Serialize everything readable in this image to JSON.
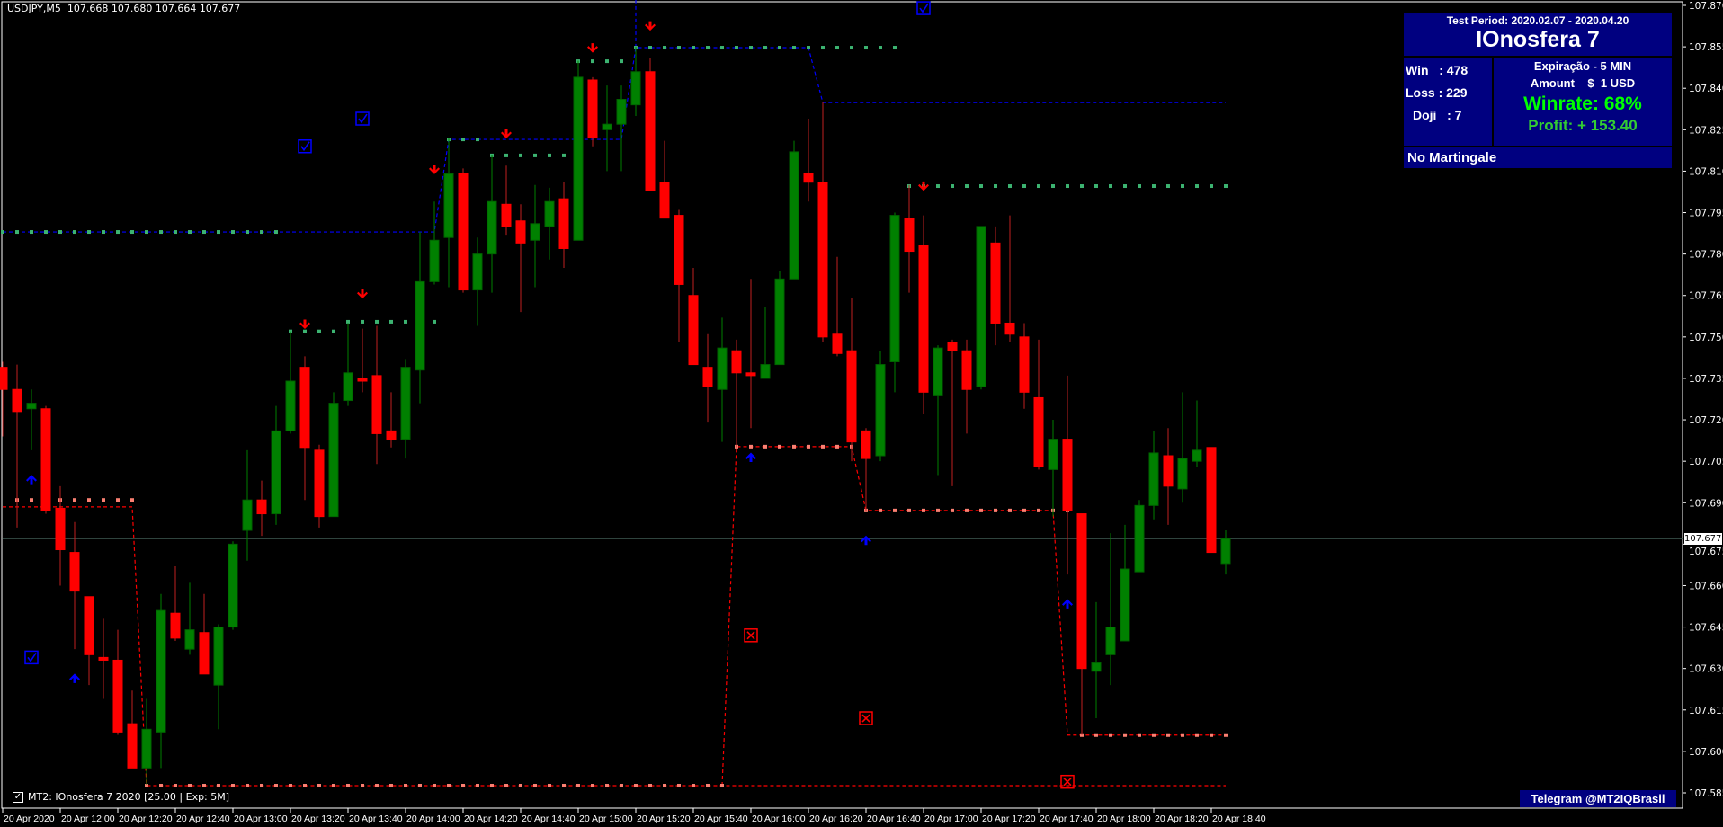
{
  "header": {
    "symbol": "USDJPY,M5",
    "ohlc_text": "107.668 107.680 107.664 107.677"
  },
  "panel": {
    "test_period": "Test Period: 2020.02.07 - 2020.04.20",
    "robot_name": "IOnosfera 7",
    "win": "Win   : 478",
    "loss": "Loss : 229",
    "doji": "Doji   : 7",
    "expiration": "Expiração - 5 MIN",
    "amount": "Amount    $  1 USD",
    "winrate": "Winrate: 68%",
    "profit": "Profit: + 153.40",
    "martingale": "No Martingale"
  },
  "legend": {
    "checked": true,
    "check_glyph": "✓",
    "label": "MT2: IOnosfera 7 2020 [25.00 | Exp: 5M]"
  },
  "telegram": "Telegram @MT2IQBrasil",
  "current_price": "107.677",
  "colors": {
    "bull": "#008000",
    "bear": "#ff0000",
    "bear_wick": "#c02020",
    "panel": "#000080",
    "price_line": "#3f5a52",
    "resistance_dots": "#3cb371",
    "support_dots": "#fa8072",
    "blue_line": "#0000ff",
    "red_line": "#ff0000",
    "up_arrow": "#0000ff",
    "down_arrow": "#ff0000"
  },
  "chart_data": {
    "type": "candlestick",
    "symbol": "USDJPY",
    "timeframe": "M5",
    "ylim": [
      107.585,
      107.87
    ],
    "y_ticks": [
      "107.870",
      "107.855",
      "107.840",
      "107.825",
      "107.810",
      "107.795",
      "107.780",
      "107.765",
      "107.750",
      "107.735",
      "107.720",
      "107.705",
      "107.690",
      "107.675",
      "107.660",
      "107.645",
      "107.630",
      "107.615",
      "107.600",
      "107.585"
    ],
    "x_tick_times": [
      "11:40",
      "12:00",
      "12:20",
      "12:40",
      "13:00",
      "13:20",
      "13:40",
      "14:00",
      "14:20",
      "14:40",
      "15:00",
      "15:20",
      "15:40",
      "16:00",
      "16:20",
      "16:40",
      "17:00",
      "17:20",
      "17:40",
      "18:00",
      "18:20",
      "18:40"
    ],
    "x_tick_labels": [
      "20 Apr 2020",
      "20 Apr 12:00",
      "20 Apr 12:20",
      "20 Apr 12:40",
      "20 Apr 13:00",
      "20 Apr 13:20",
      "20 Apr 13:40",
      "20 Apr 14:00",
      "20 Apr 14:20",
      "20 Apr 14:40",
      "20 Apr 15:00",
      "20 Apr 15:20",
      "20 Apr 15:40",
      "20 Apr 16:00",
      "20 Apr 16:20",
      "20 Apr 16:40",
      "20 Apr 17:00",
      "20 Apr 17:20",
      "20 Apr 17:40",
      "20 Apr 18:00",
      "20 Apr 18:20",
      "20 Apr 18:40"
    ],
    "candle_fields": [
      "time",
      "open",
      "high",
      "low",
      "close"
    ],
    "candles": [
      [
        "11:40",
        107.739,
        107.741,
        107.714,
        107.731
      ],
      [
        "11:45",
        107.731,
        107.74,
        107.681,
        107.723
      ],
      [
        "11:50",
        107.724,
        107.731,
        107.709,
        107.726
      ],
      [
        "11:55",
        107.724,
        107.725,
        107.686,
        107.687
      ],
      [
        "12:00",
        107.688,
        107.696,
        107.66,
        107.673
      ],
      [
        "12:05",
        107.672,
        107.683,
        107.637,
        107.658
      ],
      [
        "12:10",
        107.656,
        107.656,
        107.624,
        107.635
      ],
      [
        "12:15",
        107.634,
        107.648,
        107.619,
        107.633
      ],
      [
        "12:20",
        107.633,
        107.644,
        107.606,
        107.607
      ],
      [
        "12:25",
        107.61,
        107.622,
        107.594,
        107.594
      ],
      [
        "12:30",
        107.594,
        107.619,
        107.588,
        107.608
      ],
      [
        "12:35",
        107.607,
        107.657,
        107.594,
        107.651
      ],
      [
        "12:40",
        107.65,
        107.667,
        107.64,
        107.641
      ],
      [
        "12:45",
        107.637,
        107.661,
        107.635,
        107.644
      ],
      [
        "12:50",
        107.643,
        107.657,
        107.628,
        107.628
      ],
      [
        "12:55",
        107.624,
        107.646,
        107.608,
        107.645
      ],
      [
        "13:00",
        107.645,
        107.676,
        107.644,
        107.675
      ],
      [
        "13:05",
        107.68,
        107.709,
        107.669,
        107.691
      ],
      [
        "13:10",
        107.691,
        107.698,
        107.678,
        107.686
      ],
      [
        "13:15",
        107.686,
        107.725,
        107.682,
        107.716
      ],
      [
        "13:20",
        107.716,
        107.752,
        107.715,
        107.734
      ],
      [
        "13:25",
        107.739,
        107.743,
        107.691,
        107.71
      ],
      [
        "13:30",
        107.709,
        107.711,
        107.681,
        107.685
      ],
      [
        "13:35",
        107.685,
        107.73,
        107.685,
        107.726
      ],
      [
        "13:40",
        107.727,
        107.755,
        107.725,
        107.737
      ],
      [
        "13:45",
        107.735,
        107.753,
        107.73,
        107.734
      ],
      [
        "13:50",
        107.736,
        107.754,
        107.704,
        107.715
      ],
      [
        "13:55",
        107.716,
        107.73,
        107.71,
        107.713
      ],
      [
        "14:00",
        107.713,
        107.742,
        107.706,
        107.739
      ],
      [
        "14:05",
        107.738,
        107.788,
        107.726,
        107.77
      ],
      [
        "14:10",
        107.77,
        107.799,
        107.769,
        107.785
      ],
      [
        "14:15",
        107.786,
        107.822,
        107.768,
        107.809
      ],
      [
        "14:20",
        107.809,
        107.811,
        107.766,
        107.767
      ],
      [
        "14:25",
        107.767,
        107.786,
        107.754,
        107.78
      ],
      [
        "14:30",
        107.78,
        107.816,
        107.766,
        107.799
      ],
      [
        "14:35",
        107.798,
        107.812,
        107.787,
        107.79
      ],
      [
        "14:40",
        107.792,
        107.798,
        107.759,
        107.784
      ],
      [
        "14:45",
        107.785,
        107.805,
        107.768,
        107.791
      ],
      [
        "14:50",
        107.79,
        107.804,
        107.778,
        107.799
      ],
      [
        "14:55",
        107.8,
        107.806,
        107.775,
        107.782
      ],
      [
        "15:00",
        107.785,
        107.85,
        107.785,
        107.844
      ],
      [
        "15:05",
        107.843,
        107.844,
        107.819,
        107.822
      ],
      [
        "15:10",
        107.825,
        107.841,
        107.81,
        107.827
      ],
      [
        "15:15",
        107.827,
        107.841,
        107.81,
        107.836
      ],
      [
        "15:20",
        107.834,
        107.855,
        107.83,
        107.846
      ],
      [
        "15:25",
        107.846,
        107.851,
        107.803,
        107.803
      ],
      [
        "15:30",
        107.806,
        107.821,
        107.793,
        107.793
      ],
      [
        "15:35",
        107.794,
        107.796,
        107.748,
        107.769
      ],
      [
        "15:40",
        107.765,
        107.775,
        107.74,
        107.74
      ],
      [
        "15:45",
        107.739,
        107.751,
        107.719,
        107.732
      ],
      [
        "15:50",
        107.731,
        107.757,
        107.712,
        107.746
      ],
      [
        "15:55",
        107.745,
        107.749,
        107.71,
        107.737
      ],
      [
        "16:00",
        107.737,
        107.771,
        107.717,
        107.736
      ],
      [
        "16:05",
        107.735,
        107.761,
        107.735,
        107.74
      ],
      [
        "16:10",
        107.74,
        107.774,
        107.74,
        107.771
      ],
      [
        "16:15",
        107.771,
        107.821,
        107.771,
        107.817
      ],
      [
        "16:20",
        107.809,
        107.829,
        107.799,
        107.806
      ],
      [
        "16:25",
        107.806,
        107.835,
        107.748,
        107.75
      ],
      [
        "16:30",
        107.751,
        107.779,
        107.743,
        107.744
      ],
      [
        "16:35",
        107.745,
        107.764,
        107.705,
        107.712
      ],
      [
        "16:40",
        107.716,
        107.717,
        107.687,
        107.706
      ],
      [
        "16:45",
        107.707,
        107.745,
        107.705,
        107.74
      ],
      [
        "16:50",
        107.741,
        107.795,
        107.73,
        107.794
      ],
      [
        "16:55",
        107.793,
        107.805,
        107.766,
        107.781
      ],
      [
        "17:00",
        107.783,
        107.794,
        107.722,
        107.73
      ],
      [
        "17:05",
        107.729,
        107.747,
        107.7,
        107.746
      ],
      [
        "17:10",
        107.748,
        107.749,
        107.696,
        107.745
      ],
      [
        "17:15",
        107.745,
        107.749,
        107.715,
        107.731
      ],
      [
        "17:20",
        107.732,
        107.79,
        107.731,
        107.79
      ],
      [
        "17:25",
        107.784,
        107.79,
        107.747,
        107.755
      ],
      [
        "17:30",
        107.755,
        107.794,
        107.748,
        107.751
      ],
      [
        "17:35",
        107.75,
        107.755,
        107.724,
        107.73
      ],
      [
        "17:40",
        107.728,
        107.749,
        107.702,
        107.703
      ],
      [
        "17:45",
        107.702,
        107.72,
        107.685,
        107.713
      ],
      [
        "17:50",
        107.713,
        107.736,
        107.664,
        107.687
      ],
      [
        "17:55",
        107.686,
        107.686,
        107.606,
        107.63
      ],
      [
        "18:00",
        107.629,
        107.654,
        107.612,
        107.632
      ],
      [
        "18:05",
        107.635,
        107.679,
        107.624,
        107.645
      ],
      [
        "18:10",
        107.64,
        107.682,
        107.64,
        107.666
      ],
      [
        "18:15",
        107.665,
        107.691,
        107.665,
        107.689
      ],
      [
        "18:20",
        107.689,
        107.716,
        107.684,
        107.708
      ],
      [
        "18:25",
        107.707,
        107.717,
        107.682,
        107.696
      ],
      [
        "18:30",
        107.695,
        107.73,
        107.69,
        107.706
      ],
      [
        "18:35",
        107.705,
        107.727,
        107.703,
        107.709
      ],
      [
        "18:40",
        107.71,
        107.71,
        107.672,
        107.672
      ],
      [
        "18:45",
        107.668,
        107.68,
        107.664,
        107.677
      ]
    ],
    "blue_lines": [
      [
        [
          "11:40",
          107.788
        ],
        [
          "14:10",
          107.788
        ],
        [
          "14:15",
          107.8215
        ],
        [
          "15:15",
          107.8215
        ],
        [
          "15:20",
          107.8547
        ],
        [
          "16:20",
          107.8547
        ],
        [
          "16:25",
          107.8348
        ],
        [
          "18:45",
          107.8348
        ]
      ],
      [
        [
          "15:20",
          107.872
        ],
        [
          "15:20",
          107.8547
        ]
      ]
    ],
    "red_lines": [
      [
        [
          "11:40",
          107.6885
        ],
        [
          "12:25",
          107.6885
        ],
        [
          "12:30",
          107.5876
        ],
        [
          "18:45",
          107.5876
        ]
      ],
      [
        [
          "15:50",
          107.5876
        ],
        [
          "15:55",
          107.7103
        ],
        [
          "16:35",
          107.7103
        ],
        [
          "16:40",
          107.6872
        ],
        [
          "17:45",
          107.6872
        ],
        [
          "17:50",
          107.6059
        ],
        [
          "18:45",
          107.6059
        ]
      ]
    ],
    "resistance_dots": [
      {
        "price": 107.788,
        "from": "11:40",
        "to": "13:15"
      },
      {
        "price": 107.752,
        "from": "13:20",
        "to": "13:35"
      },
      {
        "price": 107.7555,
        "from": "13:40",
        "to": "14:10"
      },
      {
        "price": 107.8215,
        "from": "14:15",
        "to": "14:25"
      },
      {
        "price": 107.8157,
        "from": "14:30",
        "to": "14:55"
      },
      {
        "price": 107.8498,
        "from": "15:00",
        "to": "15:15"
      },
      {
        "price": 107.8547,
        "from": "15:20",
        "to": "16:50"
      },
      {
        "price": 107.8046,
        "from": "16:55",
        "to": "18:45"
      }
    ],
    "support_dots": [
      {
        "price": 107.691,
        "from": "11:45",
        "to": "12:25"
      },
      {
        "price": 107.5876,
        "from": "12:30",
        "to": "15:50"
      },
      {
        "price": 107.7103,
        "from": "15:55",
        "to": "16:35"
      },
      {
        "price": 107.6872,
        "from": "16:40",
        "to": "17:50"
      },
      {
        "price": 107.6059,
        "from": "17:55",
        "to": "18:45"
      }
    ],
    "sell_arrows": [
      [
        "13:25",
        107.754
      ],
      [
        "13:45",
        107.765
      ],
      [
        "14:10",
        107.81
      ],
      [
        "14:35",
        107.823
      ],
      [
        "15:05",
        107.854
      ],
      [
        "15:25",
        107.862
      ],
      [
        "17:00",
        107.804
      ]
    ],
    "buy_arrows": [
      [
        "11:50",
        107.699
      ],
      [
        "12:05",
        107.627
      ],
      [
        "16:00",
        107.707
      ],
      [
        "16:40",
        107.677
      ],
      [
        "17:50",
        107.654
      ]
    ],
    "win_marks": [
      [
        "11:50",
        107.634
      ],
      [
        "13:25",
        107.819
      ],
      [
        "13:45",
        107.829
      ],
      [
        "17:00",
        107.869
      ]
    ],
    "loss_marks": [
      [
        "16:00",
        107.642
      ],
      [
        "16:40",
        107.612
      ],
      [
        "17:50",
        107.589
      ]
    ]
  }
}
